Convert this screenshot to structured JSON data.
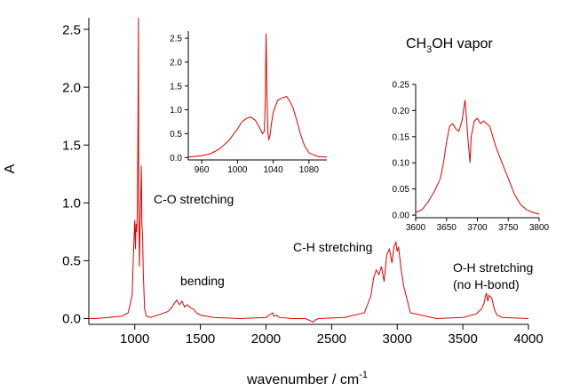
{
  "colors": {
    "spectrum": "#e00000",
    "axis": "#000000",
    "background": "#ffffff"
  },
  "chart_data": [
    {
      "id": "main",
      "type": "line",
      "title": "",
      "xlabel": "wavenumber / cm",
      "xlabel_superscript": "-1",
      "ylabel": "A",
      "xlim": [
        650,
        4000
      ],
      "ylim": [
        -0.05,
        2.6
      ],
      "xticks": [
        1000,
        1500,
        2000,
        2500,
        3000,
        3500,
        4000
      ],
      "yticks": [
        0.0,
        0.5,
        1.0,
        1.5,
        2.0,
        2.5
      ],
      "ytick_labels": [
        "0.0",
        "0.5",
        "1.0",
        "1.5",
        "2.0",
        "2.5"
      ],
      "grid": false,
      "series": [
        {
          "x": [
            650,
            700,
            800,
            900,
            950,
            980,
            990,
            1000,
            1005,
            1010,
            1015,
            1020,
            1025,
            1028,
            1030,
            1033,
            1036,
            1040,
            1045,
            1050,
            1055,
            1060,
            1065,
            1075,
            1090,
            1120,
            1200,
            1250,
            1280,
            1300,
            1320,
            1340,
            1360,
            1380,
            1400,
            1430,
            1450,
            1470,
            1500,
            1600,
            1800,
            2000,
            2050,
            2060,
            2080,
            2100,
            2200,
            2300,
            2340,
            2360,
            2380,
            2400,
            2600,
            2750,
            2800,
            2820,
            2840,
            2860,
            2880,
            2900,
            2920,
            2940,
            2960,
            2975,
            2990,
            3000,
            3010,
            3020,
            3030,
            3050,
            3100,
            3300,
            3500,
            3600,
            3640,
            3660,
            3670,
            3680,
            3690,
            3700,
            3720,
            3740,
            3760,
            3800,
            4000
          ],
          "y": [
            0.0,
            0.0,
            0.01,
            0.02,
            0.05,
            0.2,
            0.55,
            0.85,
            0.6,
            0.82,
            0.75,
            0.95,
            1.8,
            2.6,
            1.2,
            0.7,
            0.45,
            0.75,
            1.05,
            1.32,
            0.8,
            0.7,
            0.4,
            0.08,
            0.02,
            0.01,
            0.04,
            0.06,
            0.09,
            0.13,
            0.16,
            0.12,
            0.15,
            0.1,
            0.12,
            0.09,
            0.08,
            0.05,
            0.03,
            0.01,
            0.0,
            0.01,
            0.05,
            0.02,
            0.03,
            0.01,
            0.0,
            0.0,
            -0.02,
            -0.03,
            -0.01,
            0.0,
            0.01,
            0.05,
            0.2,
            0.35,
            0.42,
            0.38,
            0.45,
            0.32,
            0.55,
            0.6,
            0.48,
            0.62,
            0.66,
            0.58,
            0.62,
            0.52,
            0.42,
            0.28,
            0.05,
            0.0,
            0.01,
            0.04,
            0.08,
            0.13,
            0.18,
            0.22,
            0.15,
            0.2,
            0.18,
            0.08,
            0.03,
            0.01,
            0.0
          ]
        }
      ],
      "annotations": [
        {
          "text": "C-O stretching",
          "x": 1150,
          "y": 1.0
        },
        {
          "text": "bending",
          "x": 1330,
          "y": 0.28
        },
        {
          "text": "C-H stretching",
          "x": 2850,
          "y": 0.55
        },
        {
          "text": "O-H stretching",
          "x": 3560,
          "y": 0.42
        },
        {
          "text": "(no H-bond)",
          "x": 3560,
          "y": 0.25
        }
      ],
      "species_label": {
        "prefix": "CH",
        "subscript": "3",
        "suffix": "OH vapor"
      }
    },
    {
      "id": "inset_co",
      "type": "line",
      "title": "",
      "xlabel": "",
      "ylabel": "",
      "xlim": [
        945,
        1100
      ],
      "ylim": [
        -0.05,
        2.65
      ],
      "xticks": [
        960,
        1000,
        1040,
        1080
      ],
      "yticks": [
        0.0,
        0.5,
        1.0,
        1.5,
        2.0,
        2.5
      ],
      "ytick_labels": [
        "0.0",
        "0.5",
        "1.0",
        "1.5",
        "2.0",
        "2.5"
      ],
      "grid": false,
      "series": [
        {
          "x": [
            945,
            960,
            970,
            980,
            990,
            1000,
            1005,
            1010,
            1015,
            1020,
            1025,
            1028,
            1030,
            1031,
            1032,
            1033,
            1034,
            1035,
            1036,
            1038,
            1040,
            1045,
            1050,
            1055,
            1058,
            1062,
            1066,
            1070,
            1075,
            1080,
            1090,
            1100
          ],
          "y": [
            0.01,
            0.04,
            0.08,
            0.18,
            0.35,
            0.6,
            0.75,
            0.82,
            0.85,
            0.78,
            0.62,
            0.5,
            0.55,
            1.1,
            2.6,
            1.3,
            0.55,
            0.38,
            0.42,
            0.7,
            0.95,
            1.2,
            1.25,
            1.28,
            1.2,
            1.05,
            0.8,
            0.52,
            0.25,
            0.1,
            0.02,
            0.01
          ]
        }
      ]
    },
    {
      "id": "inset_oh",
      "type": "line",
      "title": "",
      "xlabel": "",
      "ylabel": "",
      "xlim": [
        3600,
        3800
      ],
      "ylim": [
        -0.005,
        0.25
      ],
      "xticks": [
        3600,
        3650,
        3700,
        3750,
        3800
      ],
      "yticks": [
        0.0,
        0.05,
        0.1,
        0.15,
        0.2,
        0.25
      ],
      "ytick_labels": [
        "0.00",
        "0.05",
        "0.10",
        "0.15",
        "0.20",
        "0.25"
      ],
      "grid": false,
      "series": [
        {
          "x": [
            3600,
            3610,
            3620,
            3630,
            3640,
            3645,
            3650,
            3655,
            3660,
            3665,
            3670,
            3675,
            3680,
            3682,
            3685,
            3688,
            3690,
            3695,
            3700,
            3705,
            3710,
            3715,
            3720,
            3725,
            3730,
            3740,
            3750,
            3760,
            3770,
            3780,
            3790,
            3800
          ],
          "y": [
            0.005,
            0.01,
            0.025,
            0.045,
            0.07,
            0.1,
            0.14,
            0.17,
            0.175,
            0.165,
            0.16,
            0.18,
            0.22,
            0.19,
            0.14,
            0.1,
            0.15,
            0.18,
            0.185,
            0.175,
            0.18,
            0.175,
            0.17,
            0.15,
            0.13,
            0.1,
            0.07,
            0.04,
            0.02,
            0.01,
            0.005,
            0.002
          ]
        }
      ]
    }
  ]
}
